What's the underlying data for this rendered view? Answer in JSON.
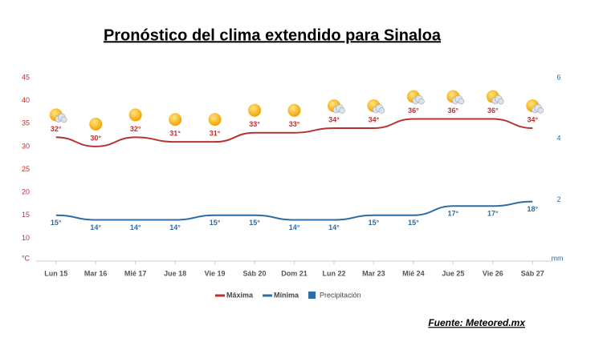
{
  "chart_data": {
    "type": "line",
    "title": "Pronóstico del clima extendido para Sinaloa",
    "source": "Fuente: Meteored.mx",
    "y_unit": "°C",
    "y2_unit": "mm",
    "categories": [
      "Lun 15",
      "Mar 16",
      "Mié 17",
      "Jue 18",
      "Vie 19",
      "Sáb 20",
      "Dom 21",
      "Lun 22",
      "Mar 23",
      "Mié 24",
      "Jue 25",
      "Vie 26",
      "Sáb 27"
    ],
    "icons": [
      "partly-cloudy",
      "sunny",
      "sunny",
      "sunny",
      "sunny",
      "sunny",
      "sunny",
      "partly-cloudy",
      "partly-cloudy",
      "partly-cloudy",
      "partly-cloudy",
      "partly-cloudy",
      "partly-cloudy"
    ],
    "series": [
      {
        "name": "Máxima",
        "color": "#b83232",
        "values": [
          32,
          30,
          32,
          31,
          31,
          33,
          33,
          34,
          34,
          36,
          36,
          36,
          34
        ],
        "value_labels": [
          "32°",
          "30°",
          "32°",
          "31°",
          "31°",
          "33°",
          "33°",
          "34°",
          "34°",
          "36°",
          "36°",
          "36°",
          "34°"
        ]
      },
      {
        "name": "Mínima",
        "color": "#2e6ca4",
        "values": [
          15,
          14,
          14,
          14,
          15,
          15,
          14,
          14,
          15,
          15,
          17,
          17,
          18
        ],
        "value_labels": [
          "15°",
          "14°",
          "14°",
          "14°",
          "15°",
          "15°",
          "14°",
          "14°",
          "15°",
          "15°",
          "17°",
          "17°",
          "18°"
        ]
      },
      {
        "name": "Precipitación",
        "color": "#2e6ca4",
        "type": "bar",
        "axis": "y2",
        "values": [
          null,
          null,
          null,
          null,
          null,
          null,
          null,
          null,
          null,
          null,
          null,
          null,
          null
        ]
      }
    ],
    "ylim": [
      5,
      45
    ],
    "yticks": [
      10,
      15,
      20,
      25,
      30,
      35,
      40,
      45
    ],
    "y2lim": [
      0,
      6
    ],
    "y2ticks": [
      2,
      4,
      6
    ],
    "grid": false
  }
}
